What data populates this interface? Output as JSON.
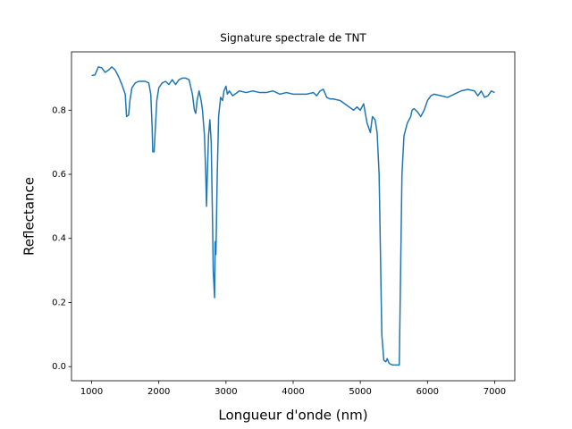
{
  "chart_data": {
    "type": "line",
    "title": "Signature spectrale de TNT",
    "x_label": "Longueur d'onde (nm)",
    "y_label": "Reflectance",
    "xlim": [
      700,
      7300
    ],
    "ylim": [
      -0.044,
      0.982
    ],
    "xticks": [
      1000,
      2000,
      3000,
      4000,
      5000,
      6000,
      7000
    ],
    "yticks": [
      {
        "value": 0,
        "label": "0.0"
      },
      0.2,
      0.4,
      0.6,
      0.8
    ],
    "series": [
      {
        "color": "#1f77b4",
        "x": [
          1000,
          1050,
          1100,
          1150,
          1200,
          1250,
          1300,
          1350,
          1400,
          1450,
          1500,
          1520,
          1550,
          1570,
          1600,
          1650,
          1700,
          1800,
          1850,
          1880,
          1900,
          1910,
          1930,
          1950,
          1970,
          2000,
          2050,
          2100,
          2150,
          2200,
          2250,
          2300,
          2350,
          2400,
          2450,
          2500,
          2530,
          2550,
          2570,
          2600,
          2630,
          2650,
          2680,
          2700,
          2710,
          2720,
          2740,
          2760,
          2780,
          2800,
          2810,
          2820,
          2830,
          2840,
          2850,
          2870,
          2890,
          2920,
          2950,
          2970,
          3000,
          3020,
          3050,
          3100,
          3200,
          3300,
          3400,
          3500,
          3600,
          3700,
          3800,
          3900,
          4000,
          4100,
          4200,
          4300,
          4350,
          4400,
          4450,
          4500,
          4550,
          4600,
          4700,
          4800,
          4900,
          4950,
          5000,
          5050,
          5100,
          5150,
          5180,
          5220,
          5250,
          5280,
          5300,
          5320,
          5350,
          5380,
          5400,
          5430,
          5480,
          5550,
          5580,
          5600,
          5620,
          5650,
          5700,
          5750,
          5770,
          5800,
          5850,
          5900,
          5950,
          6000,
          6050,
          6100,
          6200,
          6300,
          6400,
          6500,
          6600,
          6700,
          6750,
          6800,
          6850,
          6900,
          6950,
          7000
        ],
        "values": [
          0.908,
          0.91,
          0.935,
          0.932,
          0.918,
          0.925,
          0.935,
          0.925,
          0.905,
          0.88,
          0.85,
          0.78,
          0.785,
          0.83,
          0.87,
          0.885,
          0.89,
          0.89,
          0.885,
          0.85,
          0.75,
          0.67,
          0.67,
          0.75,
          0.83,
          0.87,
          0.885,
          0.89,
          0.88,
          0.895,
          0.88,
          0.895,
          0.9,
          0.9,
          0.895,
          0.85,
          0.8,
          0.79,
          0.83,
          0.86,
          0.83,
          0.8,
          0.72,
          0.59,
          0.5,
          0.58,
          0.72,
          0.77,
          0.7,
          0.45,
          0.3,
          0.26,
          0.215,
          0.39,
          0.35,
          0.6,
          0.78,
          0.84,
          0.83,
          0.86,
          0.875,
          0.85,
          0.86,
          0.845,
          0.86,
          0.855,
          0.86,
          0.855,
          0.855,
          0.86,
          0.85,
          0.855,
          0.85,
          0.85,
          0.85,
          0.855,
          0.845,
          0.86,
          0.865,
          0.84,
          0.835,
          0.835,
          0.83,
          0.815,
          0.8,
          0.81,
          0.8,
          0.82,
          0.76,
          0.73,
          0.78,
          0.77,
          0.73,
          0.6,
          0.35,
          0.1,
          0.02,
          0.015,
          0.025,
          0.01,
          0.005,
          0.005,
          0.005,
          0.3,
          0.6,
          0.72,
          0.76,
          0.78,
          0.8,
          0.805,
          0.795,
          0.78,
          0.8,
          0.83,
          0.845,
          0.85,
          0.845,
          0.84,
          0.85,
          0.86,
          0.865,
          0.86,
          0.845,
          0.86,
          0.84,
          0.845,
          0.86,
          0.855
        ]
      }
    ]
  }
}
